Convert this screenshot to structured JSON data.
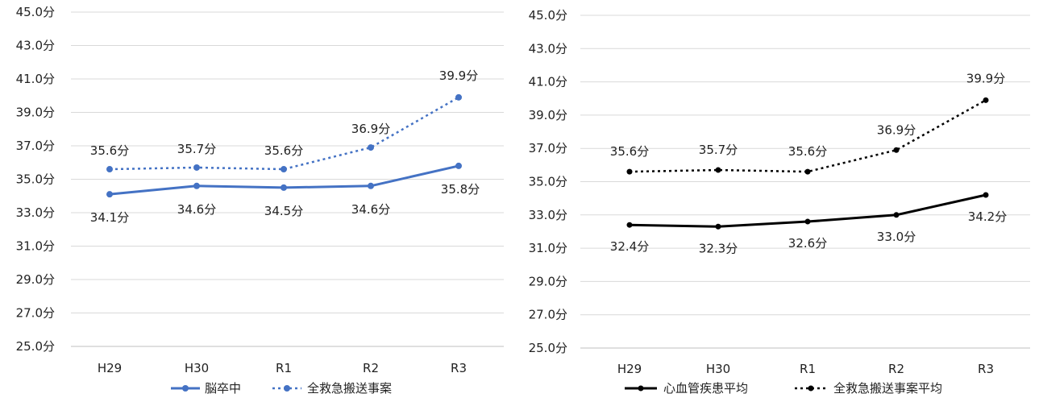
{
  "chart_data": [
    {
      "type": "line",
      "categories": [
        "H29",
        "H30",
        "R1",
        "R2",
        "R3"
      ],
      "ylim": [
        25,
        45
      ],
      "ytick_values": [
        25,
        27,
        29,
        31,
        33,
        35,
        37,
        39,
        41,
        43,
        45
      ],
      "ytick_labels": [
        "25.0分",
        "27.0分",
        "29.0分",
        "31.0分",
        "33.0分",
        "35.0分",
        "37.0分",
        "39.0分",
        "41.0分",
        "43.0分",
        "45.0分"
      ],
      "grid": true,
      "legend_position": "bottom",
      "series": [
        {
          "name": "脳卒中",
          "values": [
            34.1,
            34.6,
            34.5,
            34.6,
            35.8
          ],
          "labels": [
            "34.1分",
            "34.6分",
            "34.5分",
            "34.6分",
            "35.8分"
          ],
          "color": "#4472C4",
          "style": "solid",
          "label_position": "below"
        },
        {
          "name": "全救急搬送事案",
          "values": [
            35.6,
            35.7,
            35.6,
            36.9,
            39.9
          ],
          "labels": [
            "35.6分",
            "35.7分",
            "35.6分",
            "36.9分",
            "39.9分"
          ],
          "color": "#4472C4",
          "style": "dotted",
          "label_position": "above"
        }
      ]
    },
    {
      "type": "line",
      "categories": [
        "H29",
        "H30",
        "R1",
        "R2",
        "R3"
      ],
      "ylim": [
        25,
        45
      ],
      "ytick_values": [
        25,
        27,
        29,
        31,
        33,
        35,
        37,
        39,
        41,
        43,
        45
      ],
      "ytick_labels": [
        "25.0分",
        "27.0分",
        "29.0分",
        "31.0分",
        "33.0分",
        "35.0分",
        "37.0分",
        "39.0分",
        "41.0分",
        "43.0分",
        "45.0分"
      ],
      "grid": true,
      "legend_position": "bottom",
      "series": [
        {
          "name": "心血管疾患平均",
          "values": [
            32.4,
            32.3,
            32.6,
            33.0,
            34.2
          ],
          "labels": [
            "32.4分",
            "32.3分",
            "32.6分",
            "33.0分",
            "34.2分"
          ],
          "color": "#000000",
          "style": "solid",
          "label_position": "below"
        },
        {
          "name": "全救急搬送事案平均",
          "values": [
            35.6,
            35.7,
            35.6,
            36.9,
            39.9
          ],
          "labels": [
            "35.6分",
            "35.7分",
            "35.6分",
            "36.9分",
            "39.9分"
          ],
          "color": "#000000",
          "style": "dotted",
          "label_position": "above"
        }
      ]
    }
  ]
}
